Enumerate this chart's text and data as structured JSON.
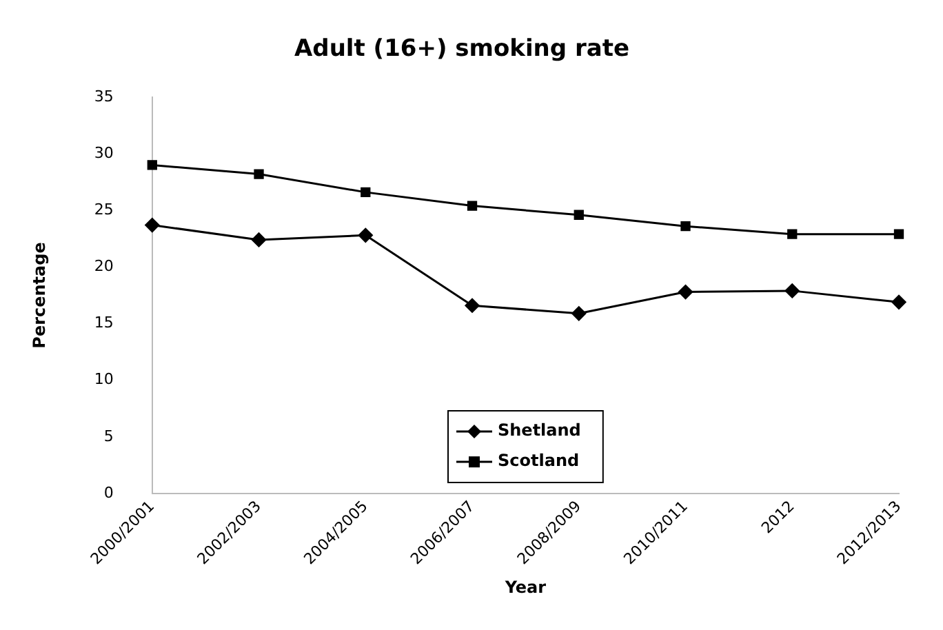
{
  "chart_data": {
    "type": "line",
    "title": "Adult (16+) smoking rate",
    "xlabel": "Year",
    "ylabel": "Percentage",
    "categories": [
      "2000/2001",
      "2002/2003",
      "2004/2005",
      "2006/2007",
      "2008/2009",
      "2010/2011",
      "2012",
      "2012/2013"
    ],
    "series": [
      {
        "name": "Shetland",
        "color": "#000000",
        "marker": "diamond",
        "values": [
          23.7,
          22.4,
          22.8,
          16.6,
          15.9,
          17.8,
          17.9,
          16.9
        ]
      },
      {
        "name": "Scotland",
        "color": "#000000",
        "marker": "square",
        "values": [
          29,
          28.2,
          26.6,
          25.4,
          24.6,
          23.6,
          22.9,
          22.9
        ]
      }
    ],
    "ylim": [
      0,
      35
    ],
    "yticks": [
      0,
      5,
      10,
      15,
      20,
      25,
      30,
      35
    ],
    "grid": false,
    "legend": "bottom",
    "line_style": "solid"
  }
}
